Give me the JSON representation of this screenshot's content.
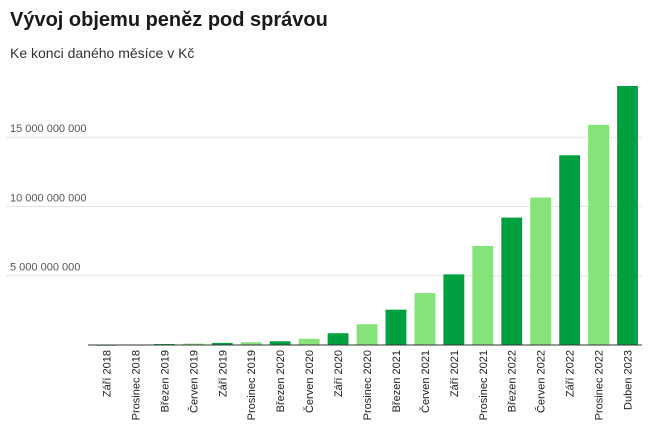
{
  "title": "Vývoj objemu peněz pod správou",
  "subtitle": "Ke konci daného měsíce v Kč",
  "colors": {
    "dark": "#00a040",
    "light": "#85e37a",
    "grid": "#e4e4e4",
    "axis": "#333333"
  },
  "chart_data": {
    "type": "bar",
    "title": "Vývoj objemu peněz pod správou",
    "subtitle": "Ke konci daného měsíce v Kč",
    "categories": [
      "Září 2018",
      "Prosinec 2018",
      "Březen 2019",
      "Červen 2019",
      "Září 2019",
      "Prosinec 2019",
      "Březen 2020",
      "Červen 2020",
      "Září 2020",
      "Prosinec 2020",
      "Březen 2021",
      "Červen 2021",
      "Září 2021",
      "Prosinec 2021",
      "Březen 2022",
      "Červen 2022",
      "Září 2022",
      "Prosinec 2022",
      "Duben 2023"
    ],
    "values": [
      20000000,
      40000000,
      70000000,
      100000000,
      150000000,
      200000000,
      270000000,
      450000000,
      850000000,
      1500000000,
      2550000000,
      3750000000,
      5100000000,
      7150000000,
      9200000000,
      10650000000,
      13700000000,
      15900000000,
      18700000000
    ],
    "bar_colors": [
      "dark",
      "light",
      "dark",
      "light",
      "dark",
      "light",
      "dark",
      "light",
      "dark",
      "light",
      "dark",
      "light",
      "dark",
      "light",
      "dark",
      "light",
      "dark",
      "light",
      "dark"
    ],
    "yticks": [
      5000000000,
      10000000000,
      15000000000
    ],
    "ytick_labels": [
      "5 000 000 000",
      "10 000 000 000",
      "15 000 000 000"
    ],
    "ylim": [
      0,
      18700000000
    ],
    "xlabel": "",
    "ylabel": "",
    "grid": true,
    "legend": "none"
  }
}
